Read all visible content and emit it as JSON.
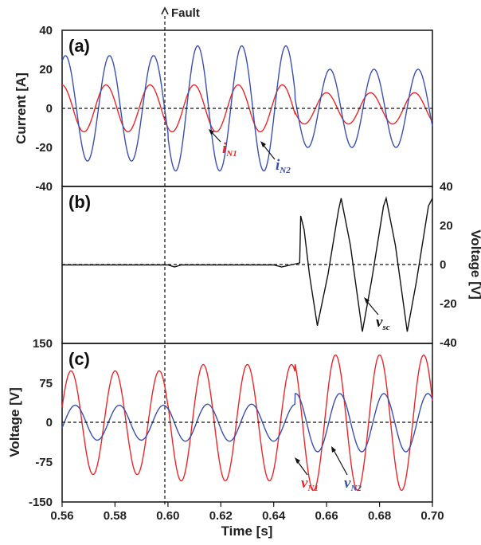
{
  "colors": {
    "red": "#e8272b",
    "blue": "#3a4fb0",
    "black": "#111111"
  },
  "fault_label": "Fault",
  "x_axis": {
    "label": "Time [s]",
    "ticks": [
      "0.56",
      "0.58",
      "0.60",
      "0.62",
      "0.64",
      "0.66",
      "0.68",
      "0.70"
    ]
  },
  "chart_data": [
    {
      "type": "line",
      "panel_label": "(a)",
      "ylabel": "Current [A]",
      "xlim": [
        0.56,
        0.7
      ],
      "ylim": [
        -40,
        40
      ],
      "yticks": [
        "40",
        "20",
        "0",
        "-20",
        "-40"
      ],
      "fault_x": 0.6,
      "frequency_hz": 60,
      "series": [
        {
          "name": "i_N1",
          "label_main": "i",
          "label_sub": "N1",
          "color": "#e8272b",
          "amplitude_segments": [
            {
              "x0": 0.56,
              "x1": 0.648,
              "amp": 12
            },
            {
              "x0": 0.648,
              "x1": 0.7,
              "amp": 8
            }
          ]
        },
        {
          "name": "i_N2",
          "label_main": "i",
          "label_sub": "N2",
          "color": "#3a4fb0",
          "amplitude_segments": [
            {
              "x0": 0.56,
              "x1": 0.6,
              "amp": 27
            },
            {
              "x0": 0.6,
              "x1": 0.648,
              "amp": 32
            },
            {
              "x0": 0.648,
              "x1": 0.7,
              "amp": 20
            }
          ]
        }
      ]
    },
    {
      "type": "line",
      "panel_label": "(b)",
      "ylabel": "Voltage [V]",
      "xlim": [
        0.56,
        0.7
      ],
      "ylim": [
        -40,
        40
      ],
      "yticks": [
        "40",
        "20",
        "0",
        "-20",
        "-40"
      ],
      "series": [
        {
          "name": "v_sc",
          "label_main": "v",
          "label_sub": "sc",
          "color": "#111111",
          "points": [
            [
              0.56,
              0
            ],
            [
              0.6,
              0
            ],
            [
              0.6025,
              -1
            ],
            [
              0.605,
              0
            ],
            [
              0.64,
              0
            ],
            [
              0.643,
              -1
            ],
            [
              0.6465,
              0
            ],
            [
              0.6498,
              1
            ],
            [
              0.6502,
              25
            ],
            [
              0.6515,
              18
            ],
            [
              0.6535,
              -5
            ],
            [
              0.6565,
              -31
            ],
            [
              0.6605,
              -5
            ],
            [
              0.6645,
              28
            ],
            [
              0.6655,
              34
            ],
            [
              0.669,
              10
            ],
            [
              0.6735,
              -34
            ],
            [
              0.677,
              -8
            ],
            [
              0.6815,
              30
            ],
            [
              0.6825,
              34
            ],
            [
              0.686,
              10
            ],
            [
              0.6905,
              -34
            ],
            [
              0.694,
              -8
            ],
            [
              0.6985,
              30
            ],
            [
              0.7,
              34
            ]
          ]
        }
      ]
    },
    {
      "type": "line",
      "panel_label": "(c)",
      "ylabel": "Voltage [V]",
      "xlim": [
        0.56,
        0.7
      ],
      "ylim": [
        -150,
        150
      ],
      "yticks": [
        "150",
        "75",
        "0",
        "-75",
        "-150"
      ],
      "frequency_hz": 60,
      "series": [
        {
          "name": "v_N1",
          "label_main": "v",
          "label_sub": "N1",
          "color": "#e8272b",
          "amplitude_segments": [
            {
              "x0": 0.56,
              "x1": 0.6,
              "amp": 98
            },
            {
              "x0": 0.6,
              "x1": 0.648,
              "amp": 110
            },
            {
              "x0": 0.648,
              "x1": 0.7,
              "amp": 128
            }
          ]
        },
        {
          "name": "v_N2",
          "label_main": "v",
          "label_sub": "N2",
          "color": "#3a4fb0",
          "amplitude_segments": [
            {
              "x0": 0.56,
              "x1": 0.6,
              "amp": 33
            },
            {
              "x0": 0.6,
              "x1": 0.648,
              "amp": 35
            },
            {
              "x0": 0.648,
              "x1": 0.7,
              "amp": 55
            }
          ]
        }
      ]
    }
  ]
}
